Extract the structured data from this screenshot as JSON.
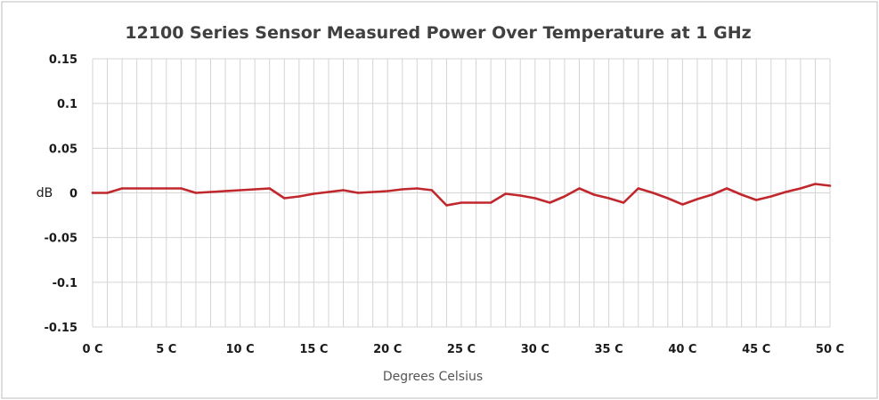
{
  "chart_data": {
    "type": "line",
    "title": "12100 Series Sensor Measured Power Over Temperature at 1 GHz",
    "xlabel": "Degrees Celsius",
    "ylabel": "dB",
    "xlim": [
      0,
      50
    ],
    "ylim": [
      -0.15,
      0.15
    ],
    "grid": true,
    "line_color": "#c0282d",
    "y_ticks": [
      {
        "value": 0.15,
        "label": "0.15"
      },
      {
        "value": 0.1,
        "label": "0.1"
      },
      {
        "value": 0.05,
        "label": "0.05"
      },
      {
        "value": 0,
        "label": "0"
      },
      {
        "value": -0.05,
        "label": "-0.05"
      },
      {
        "value": -0.1,
        "label": "-0.1"
      },
      {
        "value": -0.15,
        "label": "-0.15"
      }
    ],
    "x_ticks": [
      {
        "value": 0,
        "label": "0 C"
      },
      {
        "value": 5,
        "label": "5 C"
      },
      {
        "value": 10,
        "label": "10 C"
      },
      {
        "value": 15,
        "label": "15 C"
      },
      {
        "value": 20,
        "label": "20 C"
      },
      {
        "value": 25,
        "label": "25 C"
      },
      {
        "value": 30,
        "label": "30 C"
      },
      {
        "value": 35,
        "label": "35 C"
      },
      {
        "value": 40,
        "label": "40 C"
      },
      {
        "value": 45,
        "label": "45 C"
      },
      {
        "value": 50,
        "label": "50 C"
      }
    ],
    "series": [
      {
        "x": [
          0,
          1,
          2,
          3,
          4,
          5,
          6,
          7,
          8,
          9,
          10,
          11,
          12,
          13,
          14,
          15,
          16,
          17,
          18,
          19,
          20,
          21,
          22,
          23,
          24,
          25,
          26,
          27,
          28,
          29,
          30,
          31,
          32,
          33,
          34,
          35,
          36,
          37,
          38,
          39,
          40,
          41,
          42,
          43,
          44,
          45,
          46,
          47,
          48,
          49,
          50
        ],
        "y": [
          0,
          0,
          0.005,
          0.005,
          0.005,
          0.005,
          0.005,
          0,
          0.001,
          0.002,
          0.003,
          0.004,
          0.005,
          -0.006,
          -0.004,
          -0.001,
          0.001,
          0.003,
          0,
          0.001,
          0.002,
          0.004,
          0.005,
          0.003,
          -0.014,
          -0.011,
          -0.011,
          -0.011,
          -0.001,
          -0.003,
          -0.006,
          -0.011,
          -0.004,
          0.005,
          -0.002,
          -0.006,
          -0.011,
          0.005,
          0,
          -0.006,
          -0.013,
          -0.007,
          -0.002,
          0.005,
          -0.002,
          -0.008,
          -0.004,
          0.001,
          0.005,
          0.01,
          0.008
        ]
      }
    ]
  }
}
